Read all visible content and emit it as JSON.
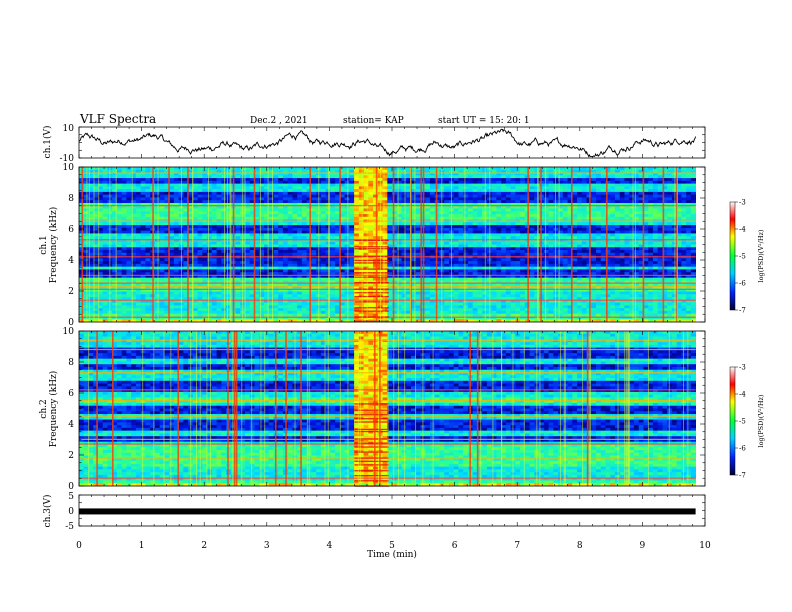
{
  "header": {
    "title": "VLF Spectra",
    "date": "Dec.2 , 2021",
    "station": "station= KAP",
    "start": "start UT = 15: 20: 1"
  },
  "chart_data": [
    {
      "type": "line",
      "panel": "ch1-waveform",
      "ylabel": "ch.1(V)",
      "ylim": [
        -10,
        10
      ],
      "yticks": [
        "10",
        "-10"
      ],
      "xlim": [
        0,
        10
      ],
      "trace_color": "#000000"
    },
    {
      "type": "heatmap",
      "panel": "ch1-spectrogram",
      "ylabel_top": "ch.1",
      "ylabel": "Frequency (kHz)",
      "ylim": [
        0,
        10
      ],
      "yticks": [
        "0",
        "2",
        "4",
        "6",
        "8",
        "10"
      ],
      "xlim": [
        0,
        10
      ],
      "data_extent_min": [
        0,
        9.85
      ],
      "burst_interval_min": [
        4.4,
        4.95
      ],
      "colorbar": {
        "label": "log(PSD)(V²/Hz)",
        "range": [
          -7,
          -3
        ],
        "ticks": [
          "-3",
          "-4",
          "-5",
          "-6",
          "-7"
        ]
      }
    },
    {
      "type": "heatmap",
      "panel": "ch2-spectrogram",
      "ylabel_top": "ch.2",
      "ylabel": "Frequency (kHz)",
      "ylim": [
        0,
        10
      ],
      "yticks": [
        "0",
        "2",
        "4",
        "6",
        "8",
        "10"
      ],
      "xlim": [
        0,
        10
      ],
      "data_extent_min": [
        0,
        9.85
      ],
      "burst_interval_min": [
        4.4,
        4.95
      ],
      "colorbar": {
        "label": "log(PSD)(V²/Hz)",
        "range": [
          -7,
          -3
        ],
        "ticks": [
          "-3",
          "-4",
          "-5",
          "-6",
          "-7"
        ]
      }
    },
    {
      "type": "line",
      "panel": "ch3-waveform",
      "ylabel": "ch.3(V)",
      "ylim": [
        -5,
        5
      ],
      "yticks": [
        "5",
        "0",
        "-5"
      ],
      "xlim": [
        0,
        10
      ],
      "level_V": -0.3,
      "trace_color": "#000000"
    }
  ],
  "xaxis": {
    "label": "Time (min)",
    "ticks": [
      "0",
      "1",
      "2",
      "3",
      "4",
      "5",
      "6",
      "7",
      "8",
      "9",
      "10"
    ]
  }
}
